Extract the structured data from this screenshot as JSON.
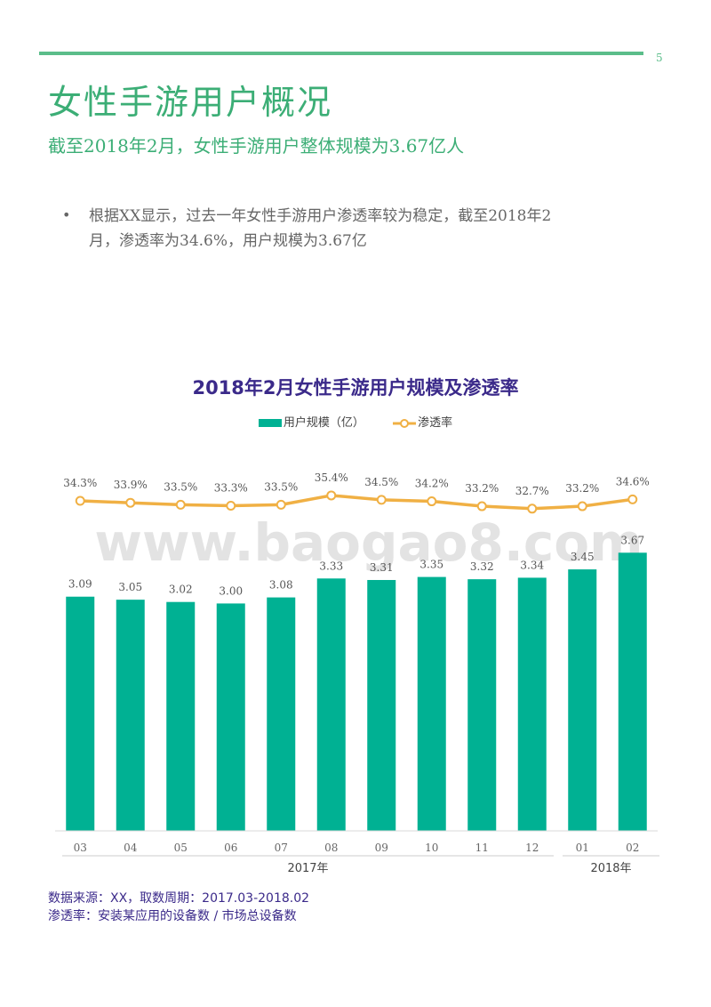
{
  "page": {
    "number": "5",
    "title": "女性手游用户概况",
    "subtitle": "截至2018年2月，女性手游用户整体规模为3.67亿人",
    "bullet_mark": "•",
    "bullet": "根据XX显示，过去一年女性手游用户渗透率较为稳定，截至2018年2月，渗透率为34.6%，用户规模为3.67亿",
    "watermark": "www.baogao8.com",
    "source_line": "数据来源：XX，取数周期：2017.03-2018.02",
    "definition_line": "渗透率：安装某应用的设备数 / 市场总设备数"
  },
  "colors": {
    "bar": "#00b193",
    "line": "#f0b044",
    "title_green": "#3cae76",
    "chart_title": "#3b2a8a"
  },
  "chart_data": {
    "type": "bar",
    "title": "2018年2月女性手游用户规模及渗透率",
    "categories": [
      "03",
      "04",
      "05",
      "06",
      "07",
      "08",
      "09",
      "10",
      "11",
      "12",
      "01",
      "02"
    ],
    "year_groups": [
      {
        "label": "2017年",
        "categories": [
          "03",
          "04",
          "05",
          "06",
          "07",
          "08",
          "09",
          "10",
          "11",
          "12"
        ]
      },
      {
        "label": "2018年",
        "categories": [
          "01",
          "02"
        ]
      }
    ],
    "series": [
      {
        "name": "用户规模（亿）",
        "type": "bar",
        "values": [
          3.09,
          3.05,
          3.02,
          3.0,
          3.08,
          3.33,
          3.31,
          3.35,
          3.32,
          3.34,
          3.45,
          3.67
        ],
        "labels": [
          "3.09",
          "3.05",
          "3.02",
          "3.00",
          "3.08",
          "3.33",
          "3.31",
          "3.35",
          "3.32",
          "3.34",
          "3.45",
          "3.67"
        ]
      },
      {
        "name": "渗透率",
        "type": "line",
        "values": [
          34.3,
          33.9,
          33.5,
          33.3,
          33.5,
          35.4,
          34.5,
          34.2,
          33.2,
          32.7,
          33.2,
          34.6
        ],
        "labels": [
          "34.3%",
          "33.9%",
          "33.5%",
          "33.3%",
          "33.5%",
          "35.4%",
          "34.5%",
          "34.2%",
          "33.2%",
          "32.7%",
          "33.2%",
          "34.6%"
        ]
      }
    ],
    "legend_position": "top-center",
    "grid": false
  }
}
